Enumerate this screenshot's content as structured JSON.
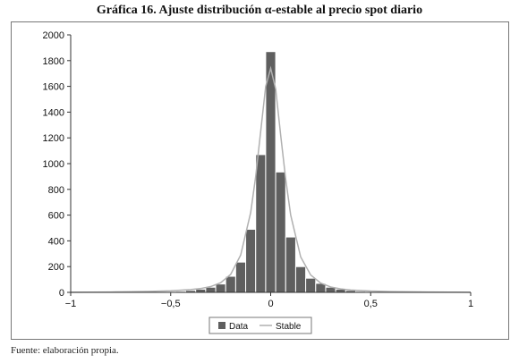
{
  "title": "Gráfica 16. Ajuste distribución α-estable al precio spot diario",
  "source_note": "Fuente: elaboración propia.",
  "chart_data": {
    "type": "bar",
    "title": "Gráfica 16. Ajuste distribución α-estable al precio spot diario",
    "xlabel": "",
    "ylabel": "",
    "xlim": [
      -1,
      1
    ],
    "ylim": [
      0,
      2000
    ],
    "x_ticks": [
      "−1",
      "−0,5",
      "0",
      "0,5",
      "1"
    ],
    "x_tick_values": [
      -1,
      -0.5,
      0,
      0.5,
      1
    ],
    "y_ticks": [
      "0",
      "200",
      "400",
      "600",
      "800",
      "1000",
      "1200",
      "1400",
      "1600",
      "1800",
      "2000"
    ],
    "y_tick_values": [
      0,
      200,
      400,
      600,
      800,
      1000,
      1200,
      1400,
      1600,
      1800,
      2000
    ],
    "grid": false,
    "legend_position": "bottom-center",
    "colors": {
      "bars": "#5f5f5f",
      "bar_edge": "#ffffff",
      "line": "#b0b0b0",
      "axis": "#333333"
    },
    "series": [
      {
        "name": "Data",
        "type": "bar",
        "bin_width": 0.05,
        "x": [
          -0.5,
          -0.45,
          -0.4,
          -0.35,
          -0.3,
          -0.25,
          -0.2,
          -0.15,
          -0.1,
          -0.05,
          0,
          0.05,
          0.1,
          0.15,
          0.2,
          0.25,
          0.3,
          0.35,
          0.4,
          0.45,
          0.5
        ],
        "values": [
          5,
          8,
          15,
          25,
          40,
          65,
          125,
          235,
          490,
          1070,
          1870,
          935,
          430,
          200,
          110,
          70,
          40,
          25,
          15,
          8,
          4
        ]
      },
      {
        "name": "Stable",
        "type": "line",
        "x": [
          -1,
          -0.9,
          -0.8,
          -0.7,
          -0.6,
          -0.5,
          -0.4,
          -0.35,
          -0.3,
          -0.25,
          -0.2,
          -0.15,
          -0.1,
          -0.075,
          -0.05,
          -0.025,
          0,
          0.025,
          0.05,
          0.075,
          0.1,
          0.15,
          0.2,
          0.25,
          0.3,
          0.35,
          0.4,
          0.5,
          0.6,
          0.7,
          0.8,
          0.9,
          1
        ],
        "values": [
          1,
          2,
          3,
          5,
          8,
          12,
          22,
          30,
          45,
          75,
          140,
          290,
          620,
          900,
          1250,
          1600,
          1740,
          1580,
          1220,
          880,
          600,
          275,
          135,
          72,
          42,
          27,
          18,
          10,
          6,
          4,
          3,
          2,
          1
        ]
      }
    ],
    "legend": [
      "Data",
      "Stable"
    ]
  }
}
